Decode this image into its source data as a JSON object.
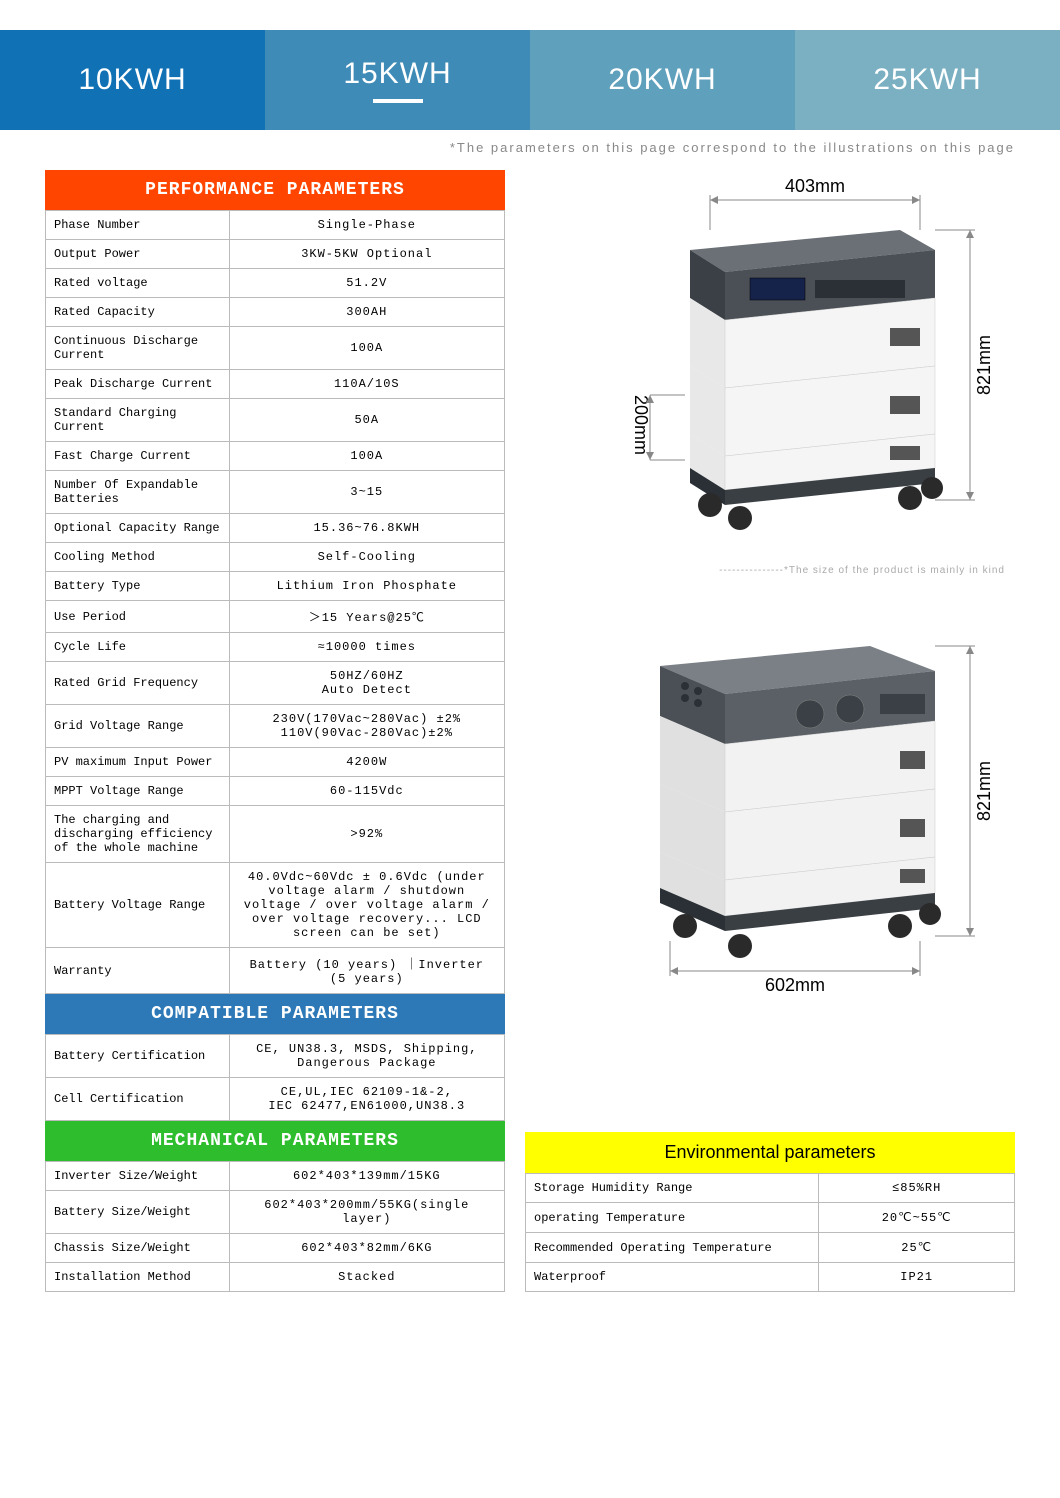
{
  "tabs": [
    {
      "label": "10KWH",
      "bg": "#1071b5"
    },
    {
      "label": "15KWH",
      "bg": "#3f8bb7",
      "active": true
    },
    {
      "label": "20KWH",
      "bg": "#5fa0bc"
    },
    {
      "label": "25KWH",
      "bg": "#7bb0c2"
    }
  ],
  "top_note": "*The parameters on this page correspond to the illustrations on this page",
  "sections": {
    "performance": {
      "title": "PERFORMANCE PARAMETERS",
      "bg": "#ff4500"
    },
    "compatible": {
      "title": "COMPATIBLE PARAMETERS",
      "bg": "#2d78b6"
    },
    "mechanical": {
      "title": "MECHANICAL PARAMETERS",
      "bg": "#2dbd2d"
    },
    "environmental": {
      "title": "Environmental parameters",
      "bg": "#ffff00"
    }
  },
  "performance_rows": [
    [
      "Phase Number",
      "Single-Phase"
    ],
    [
      "Output Power",
      "3KW-5KW Optional"
    ],
    [
      "Rated voltage",
      "51.2V"
    ],
    [
      "Rated Capacity",
      "300AH"
    ],
    [
      "Continuous Discharge Current",
      "100A"
    ],
    [
      "Peak  Discharge Current",
      "110A/10S"
    ],
    [
      "Standard Charging Current",
      "50A"
    ],
    [
      "Fast Charge Current",
      "100A"
    ],
    [
      "Number Of Expandable Batteries",
      "3~15"
    ],
    [
      "Optional Capacity Range",
      "15.36~76.8KWH"
    ],
    [
      "Cooling Method",
      "Self-Cooling"
    ],
    [
      "Battery Type",
      "Lithium Iron Phosphate"
    ],
    [
      "Use Period",
      "＞15 Years@25℃"
    ],
    [
      "Cycle Life",
      "≈10000 times"
    ],
    [
      "Rated Grid Frequency",
      "50HZ/60HZ\nAuto Detect"
    ],
    [
      "Grid Voltage Range",
      "230V(170Vac~280Vac) ±2%\n110V(90Vac-280Vac)±2%"
    ],
    [
      "PV maximum Input Power",
      "4200W"
    ],
    [
      "MPPT Voltage Range",
      "60-115Vdc"
    ],
    [
      "The charging and discharging efficiency of the whole machine",
      ">92%"
    ],
    [
      "Battery Voltage Range",
      "40.0Vdc~60Vdc ± 0.6Vdc (under voltage alarm / shutdown voltage / over voltage alarm / over voltage recovery... LCD screen can be set)"
    ],
    [
      "Warranty",
      "Battery (10 years) ｜Inverter (5 years)"
    ]
  ],
  "compatible_rows": [
    [
      "Battery Certification",
      "CE, UN38.3, MSDS, Shipping,\nDangerous Package"
    ],
    [
      "Cell Certification",
      "CE,UL,IEC 62109-1&-2,\nIEC 62477,EN61000,UN38.3"
    ]
  ],
  "mechanical_rows": [
    [
      "Inverter Size/Weight",
      "602*403*139mm/15KG"
    ],
    [
      "Battery Size/Weight",
      "602*403*200mm/55KG(single layer)"
    ],
    [
      "Chassis Size/Weight",
      "602*403*82mm/6KG"
    ],
    [
      "Installation Method",
      "Stacked"
    ]
  ],
  "environmental_rows": [
    [
      "Storage Humidity Range",
      "≤85%RH"
    ],
    [
      "operating Temperature",
      "20℃~55℃"
    ],
    [
      "Recommended Operating Temperature",
      "25℃"
    ],
    [
      "Waterproof",
      "IP21"
    ]
  ],
  "diagram_caption": "---------------*The size of the product is mainly in kind",
  "diagram1": {
    "top_dim": "403mm",
    "side_dim": "200mm",
    "right_dim": "821mm",
    "colors": {
      "inverter": "#4a5055",
      "module_light": "#f5f5f5",
      "module_border": "#555",
      "base": "#3a3f44",
      "wheel": "#2a2a2a",
      "line": "#888"
    }
  },
  "diagram2": {
    "bottom_dim": "602mm",
    "right_dim": "821mm",
    "colors": {
      "inverter": "#5a6065",
      "module_light": "#f2f2f2",
      "module_border": "#555",
      "base": "#3a3f44",
      "wheel": "#2a2a2a",
      "line": "#888"
    }
  }
}
